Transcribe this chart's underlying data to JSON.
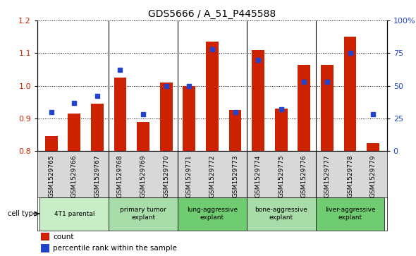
{
  "title": "GDS5666 / A_51_P445588",
  "samples": [
    "GSM1529765",
    "GSM1529766",
    "GSM1529767",
    "GSM1529768",
    "GSM1529769",
    "GSM1529770",
    "GSM1529771",
    "GSM1529772",
    "GSM1529773",
    "GSM1529774",
    "GSM1529775",
    "GSM1529776",
    "GSM1529777",
    "GSM1529778",
    "GSM1529779"
  ],
  "counts": [
    0.845,
    0.915,
    0.945,
    1.025,
    0.89,
    1.01,
    1.0,
    1.135,
    0.925,
    1.11,
    0.93,
    1.065,
    1.065,
    1.15,
    0.825
  ],
  "percentiles": [
    30,
    37,
    42,
    62,
    28,
    50,
    50,
    78,
    30,
    70,
    32,
    53,
    53,
    75,
    28
  ],
  "cell_types": [
    {
      "label": "4T1 parental",
      "start": 0,
      "end": 3
    },
    {
      "label": "primary tumor\nexplant",
      "start": 3,
      "end": 6
    },
    {
      "label": "lung-aggressive\nexplant",
      "start": 6,
      "end": 9
    },
    {
      "label": "bone-aggressive\nexplant",
      "start": 9,
      "end": 12
    },
    {
      "label": "liver-aggressive\nexplant",
      "start": 12,
      "end": 15
    }
  ],
  "cell_type_colors": [
    "#c8eec8",
    "#a8dca8",
    "#70cc70",
    "#a8dca8",
    "#70cc70"
  ],
  "ylim_left": [
    0.8,
    1.2
  ],
  "ylim_right": [
    0,
    100
  ],
  "bar_color": "#cc2200",
  "dot_color": "#2244cc",
  "bar_width": 0.55,
  "legend_items": [
    "count",
    "percentile rank within the sample"
  ],
  "title_fontsize": 10,
  "yticks_left": [
    0.8,
    0.9,
    1.0,
    1.1,
    1.2
  ],
  "yticks_right": [
    0,
    25,
    50,
    75,
    100
  ],
  "ytick_labels_right": [
    "0",
    "25",
    "50",
    "75",
    "100%"
  ]
}
